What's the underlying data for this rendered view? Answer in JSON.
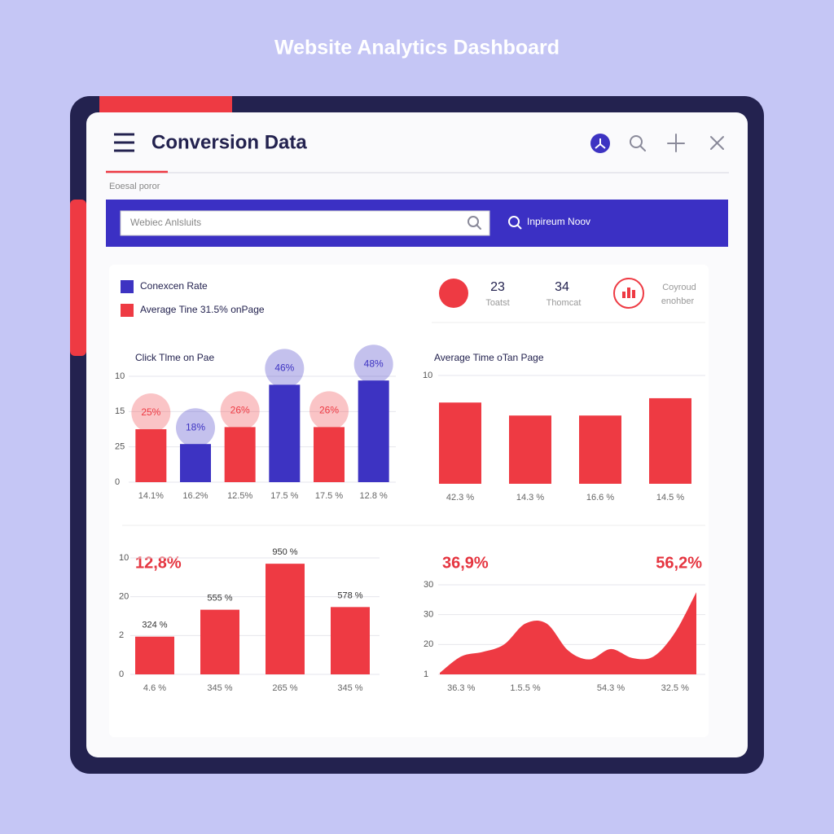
{
  "title": "Website Analytics Dashboard",
  "header": {
    "title": "Conversion Data",
    "subtitle": "Eoesal poror"
  },
  "search": {
    "placeholder": "Webiec Anlsluits",
    "button": "Inpireum Noov"
  },
  "legend": [
    {
      "label": "Conexcen Rate",
      "color": "#3d33c2"
    },
    {
      "label": "Average Tine 31.5% onPage",
      "color": "#ee3a43"
    }
  ],
  "stats": [
    {
      "value": 23,
      "label": "Toatst"
    },
    {
      "value": 34,
      "label": "Thomcat"
    },
    {
      "lines": [
        "Coyroud",
        "enohber"
      ]
    }
  ],
  "chart_data": [
    {
      "type": "bar",
      "title": "Click Tlme on Pae",
      "categories": [
        "14.1%",
        "16.2%",
        "12.5%",
        "17.5 %",
        "17.5 %",
        "12.8 %"
      ],
      "values": [
        25,
        18,
        26,
        46,
        26,
        48
      ],
      "value_labels": [
        "25%",
        "18%",
        "26%",
        "46%",
        "26%",
        "48%"
      ],
      "colors": [
        "#ee3a43",
        "#3d33c2",
        "#ee3a43",
        "#3d33c2",
        "#ee3a43",
        "#3d33c2"
      ],
      "ylim": [
        0,
        50
      ],
      "y_axis_labels": [
        "10",
        "15",
        "25",
        "0"
      ]
    },
    {
      "type": "bar",
      "title": "Average Time oTan Page",
      "categories": [
        "42.3 %",
        "14.3 %",
        "16.6 %",
        "14.5 %"
      ],
      "values": [
        7.5,
        6.3,
        6.3,
        7.9
      ],
      "color": "#ee3a43",
      "ylim": [
        0,
        10
      ],
      "yticks": [
        10
      ],
      "grid": true
    },
    {
      "type": "bar",
      "annotations": [
        "12,8%"
      ],
      "categories": [
        "4.6 %",
        "345 %",
        "265 %",
        "345 %"
      ],
      "values": [
        324,
        555,
        950,
        578
      ],
      "value_labels": [
        "324 %",
        "555 %",
        "950 %",
        "578 %"
      ],
      "color": "#ee3a43",
      "ylim": [
        0,
        1000
      ],
      "y_axis_labels": [
        "10",
        "20",
        "2",
        "0"
      ]
    },
    {
      "type": "area",
      "annotations": [
        "36,9%",
        "56,2%"
      ],
      "categories": [
        null,
        "36.3 %",
        null,
        null,
        "1.5.5 %",
        null,
        null,
        null,
        "54.3 %",
        null,
        null,
        "32.5 %",
        null
      ],
      "values": [
        0.5,
        6,
        7.5,
        10,
        17,
        17,
        8,
        5,
        8.5,
        5.5,
        6,
        14,
        27.5
      ],
      "color": "#ee3a43",
      "ylim": [
        0,
        30
      ],
      "y_axis_labels": [
        "30",
        "30",
        "20",
        "1"
      ]
    }
  ]
}
